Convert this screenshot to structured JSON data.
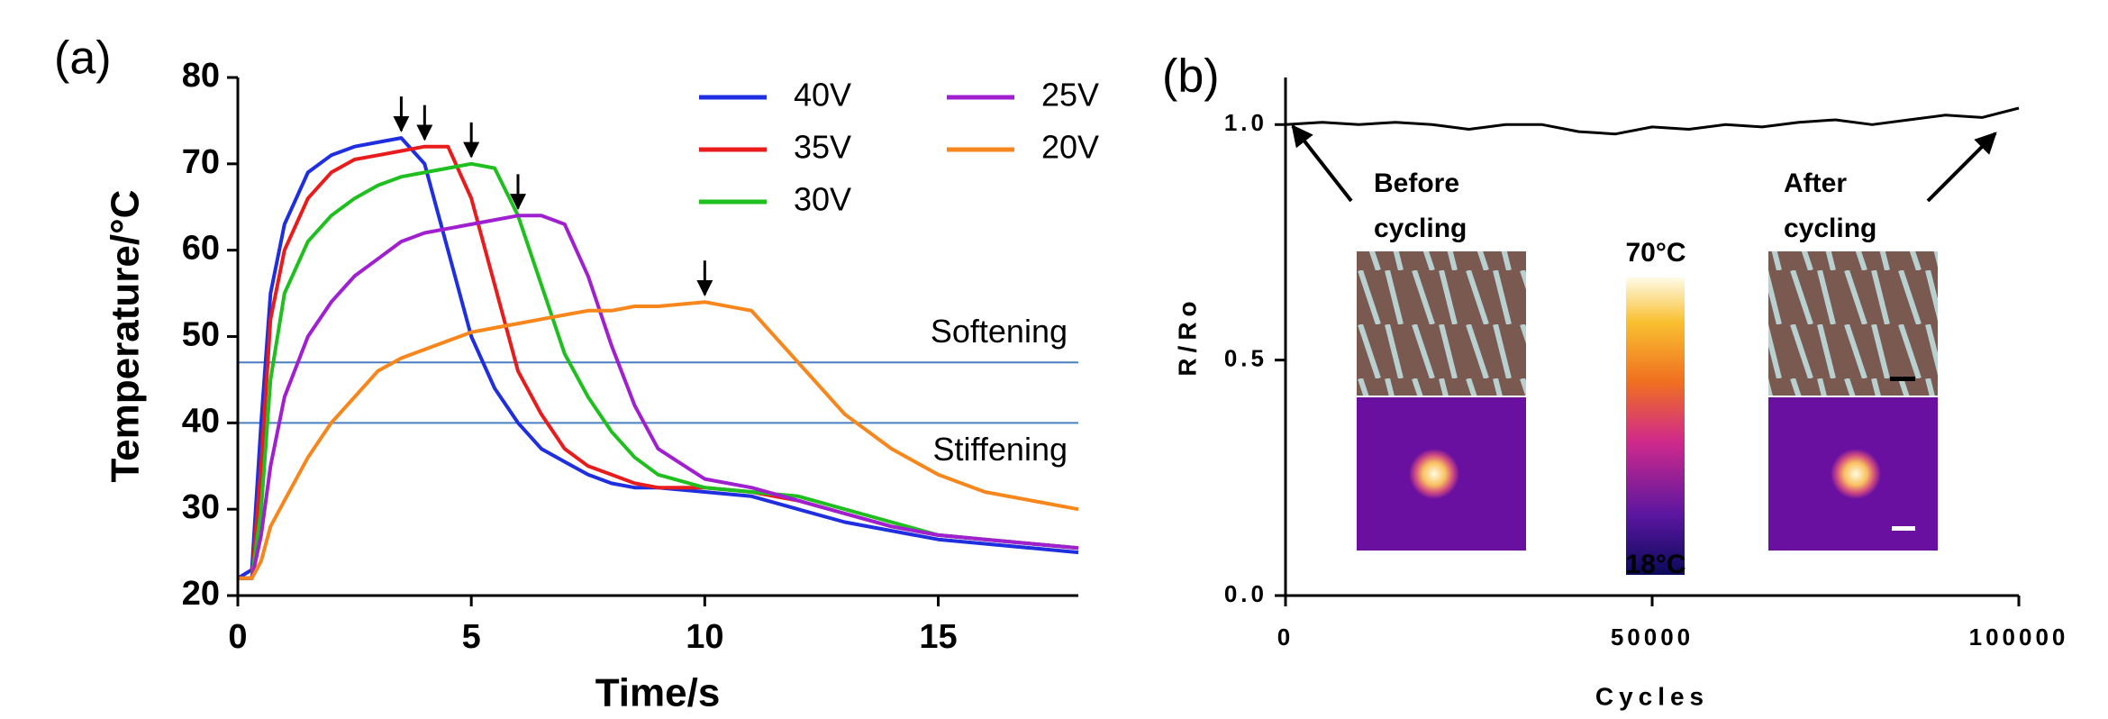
{
  "chart_data": [
    {
      "type": "line",
      "panel_label": "(a)",
      "x_label": "Time/s",
      "y_label": "Temperature/°C",
      "x": [
        0,
        0.3,
        0.5,
        0.7,
        1,
        1.5,
        2,
        2.5,
        3,
        3.5,
        4,
        4.5,
        5,
        5.5,
        6,
        6.5,
        7,
        7.5,
        8,
        8.5,
        9,
        10,
        11,
        12,
        13,
        14,
        15,
        16,
        17,
        18
      ],
      "series": [
        {
          "name": "40V",
          "color": "#1f2fe0",
          "values": [
            22,
            23,
            40,
            55,
            63,
            69,
            71,
            72,
            72.5,
            73,
            70,
            60,
            50,
            44,
            40,
            37,
            35.5,
            34,
            33,
            32.5,
            32.5,
            32,
            31.5,
            30,
            28.5,
            27.5,
            26.5,
            26,
            25.5,
            25
          ]
        },
        {
          "name": "35V",
          "color": "#e81c1c",
          "values": [
            22,
            22,
            35,
            52,
            60,
            66,
            69,
            70.5,
            71,
            71.5,
            72,
            72,
            66,
            56,
            46,
            41,
            37,
            35,
            34,
            33,
            32.5,
            32.5,
            32,
            31,
            29.5,
            28,
            27,
            26.5,
            26,
            25.5
          ]
        },
        {
          "name": "30V",
          "color": "#1fbf1f",
          "values": [
            22,
            22,
            30,
            45,
            55,
            61,
            64,
            66,
            67.5,
            68.5,
            69,
            69.5,
            70,
            69.5,
            64,
            56,
            48,
            43,
            39,
            36,
            34,
            32.5,
            32,
            31.5,
            30,
            28.5,
            27,
            26.5,
            26,
            25.5
          ]
        },
        {
          "name": "25V",
          "color": "#a020d0",
          "values": [
            22,
            22,
            27,
            35,
            43,
            50,
            54,
            57,
            59,
            61,
            62,
            62.5,
            63,
            63.5,
            64,
            64,
            63,
            57,
            49,
            42,
            37,
            33.5,
            32.5,
            31,
            29.5,
            28,
            27,
            26.5,
            26,
            25.5
          ]
        },
        {
          "name": "20V",
          "color": "#f7861c",
          "values": [
            22,
            22,
            24,
            28,
            31,
            36,
            40,
            43,
            46,
            47.5,
            48.5,
            49.5,
            50.5,
            51,
            51.5,
            52,
            52.5,
            53,
            53,
            53.5,
            53.5,
            54,
            53,
            47,
            41,
            37,
            34,
            32,
            31,
            30
          ]
        }
      ],
      "reference_lines": [
        {
          "value": 47,
          "label": "Softening",
          "color": "#4a7fc0"
        },
        {
          "value": 40,
          "label": "Stiffening",
          "color": "#4a7fc0"
        }
      ],
      "peak_arrows": true,
      "xlim": [
        0,
        18
      ],
      "xticks": [
        0,
        5,
        10,
        15
      ],
      "ylim": [
        20,
        80
      ],
      "yticks": [
        20,
        30,
        40,
        50,
        60,
        70,
        80
      ]
    },
    {
      "type": "line",
      "panel_label": "(b)",
      "x_label": "Cycles",
      "y_label": "R/Ro",
      "x": [
        0,
        5000,
        10000,
        15000,
        20000,
        25000,
        30000,
        35000,
        40000,
        45000,
        50000,
        55000,
        60000,
        65000,
        70000,
        75000,
        80000,
        85000,
        90000,
        95000,
        100000
      ],
      "series": [
        {
          "name": "R/Ro",
          "color": "#000000",
          "values": [
            1.0,
            1.005,
            1.0,
            1.005,
            1.0,
            0.99,
            1.0,
            1.0,
            0.985,
            0.98,
            0.995,
            0.99,
            1.0,
            0.995,
            1.005,
            1.01,
            1.0,
            1.01,
            1.02,
            1.015,
            1.035
          ]
        }
      ],
      "annotations": [
        "Before",
        "cycling",
        "After",
        "cycling"
      ],
      "colorbar_labels": [
        "70°C",
        "18°C"
      ],
      "xlim": [
        0,
        100000
      ],
      "xticks": [
        0,
        50000,
        100000
      ],
      "ylim": [
        0,
        1.1
      ],
      "yticks": [
        {
          "value": 0,
          "label": "0.0"
        },
        {
          "value": 0.5,
          "label": "0.5"
        },
        {
          "value": 1,
          "label": "1.0"
        }
      ]
    }
  ]
}
